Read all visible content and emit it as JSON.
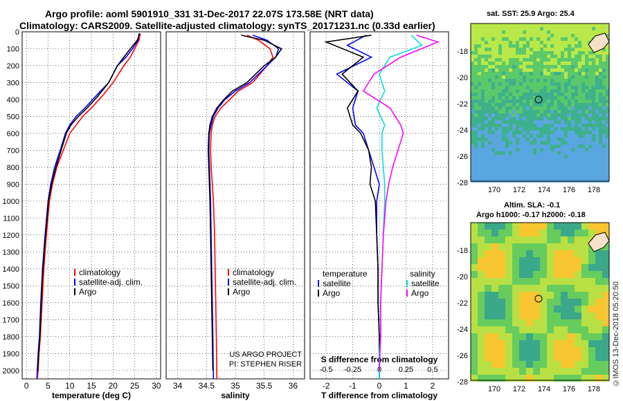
{
  "titles": {
    "line1": "Argo profile: aoml 5901910_331 31-Dec-2017 22.07S 173.58E (NRT data)",
    "line2": "Climatology: CARS2009. Satellite-adjusted climatology: synTS_20171231.nc (0.33d earlier)"
  },
  "maps": {
    "sst_label": "sat. SST: 25.9 Argo: 25.4",
    "sla_label1": "Altim. SLA: -0.1",
    "sla_label2": "Argo h1000: -0.17 h2000: -0.18",
    "credit": "©IMOS 13-Dec-2018 05:20:50",
    "lat_ticks": [
      "-18",
      "-20",
      "-22",
      "-24",
      "-26",
      "-28"
    ],
    "lon_ticks": [
      "170",
      "172",
      "174",
      "176",
      "178"
    ]
  },
  "chart_data": [
    {
      "type": "line",
      "name": "temperature-profile",
      "xlabel": "temperature (deg C)",
      "ylabel": "",
      "xlim": [
        -1,
        31
      ],
      "ylim": [
        2050,
        0
      ],
      "x_ticks": [
        "0",
        "5",
        "10",
        "15",
        "20",
        "25",
        "30"
      ],
      "y_ticks": [
        "0",
        "100",
        "200",
        "300",
        "400",
        "500",
        "600",
        "700",
        "800",
        "900",
        "1000",
        "1100",
        "1200",
        "1300",
        "1400",
        "1500",
        "1600",
        "1700",
        "1800",
        "1900",
        "2000"
      ],
      "grid": true,
      "legend": {
        "placement": "bottom-right",
        "entries": [
          "climatology",
          "satellite-adj. clim.",
          "Argo"
        ]
      },
      "series": [
        {
          "name": "climatology",
          "color": "#ff0000",
          "x": [
            26.3,
            26.0,
            25.0,
            24.0,
            22.5,
            20.0,
            17.5,
            15.0,
            13.0,
            11.5,
            10.0,
            8.5,
            7.0,
            6.0,
            5.3,
            4.6,
            4.0,
            3.6,
            3.2,
            2.9,
            2.7,
            2.5
          ],
          "y": [
            10,
            50,
            100,
            150,
            200,
            300,
            380,
            450,
            500,
            550,
            600,
            700,
            800,
            900,
            1000,
            1200,
            1400,
            1600,
            1800,
            1900,
            2000,
            2050
          ]
        },
        {
          "name": "satellite-adj. clim.",
          "color": "#0000ff",
          "x": [
            26.0,
            25.8,
            24.5,
            23.0,
            21.0,
            19.0,
            16.0,
            13.5,
            11.5,
            10.0,
            9.0,
            7.8,
            6.5,
            5.6,
            5.0,
            4.3,
            3.7,
            3.3,
            3.0,
            2.7,
            2.5,
            2.4
          ],
          "y": [
            10,
            50,
            100,
            150,
            200,
            300,
            380,
            450,
            500,
            550,
            600,
            700,
            800,
            900,
            1000,
            1200,
            1400,
            1600,
            1800,
            1900,
            2000,
            2050
          ]
        },
        {
          "name": "Argo",
          "color": "#000000",
          "x": [
            26.2,
            25.6,
            24.0,
            22.5,
            21.0,
            19.0,
            16.5,
            14.0,
            12.0,
            10.3,
            9.2,
            8.0,
            6.8,
            5.8,
            5.1,
            4.4,
            3.8,
            3.4,
            3.1,
            2.8,
            2.6
          ],
          "y": [
            10,
            50,
            100,
            150,
            200,
            300,
            380,
            450,
            500,
            550,
            600,
            700,
            800,
            900,
            1000,
            1200,
            1400,
            1600,
            1800,
            1900,
            2000
          ]
        }
      ]
    },
    {
      "type": "line",
      "name": "salinity-profile",
      "xlabel": "salinity",
      "xlim": [
        33.8,
        36.2
      ],
      "ylim": [
        2050,
        0
      ],
      "x_ticks": [
        "34",
        "34.5",
        "35",
        "35.5",
        "36"
      ],
      "grid": true,
      "legend": {
        "placement": "bottom-right",
        "entries": [
          "climatology",
          "satellite-adj. clim.",
          "Argo"
        ]
      },
      "annotations": [
        "US ARGO PROJECT",
        "PI: STEPHEN RISER"
      ],
      "series": [
        {
          "name": "climatology",
          "color": "#ff0000",
          "x": [
            35.2,
            35.4,
            35.6,
            35.65,
            35.55,
            35.3,
            35.05,
            34.9,
            34.75,
            34.65,
            34.6,
            34.58,
            34.57,
            34.58,
            34.6,
            34.62,
            34.64,
            34.65,
            34.66,
            34.67,
            34.68
          ],
          "y": [
            20,
            50,
            100,
            150,
            200,
            300,
            350,
            400,
            450,
            500,
            550,
            600,
            700,
            800,
            900,
            1000,
            1200,
            1400,
            1600,
            1800,
            2050
          ]
        },
        {
          "name": "satellite-adj. clim.",
          "color": "#0000ff",
          "x": [
            35.3,
            35.55,
            35.75,
            35.7,
            35.55,
            35.25,
            35.0,
            34.82,
            34.7,
            34.62,
            34.58,
            34.55,
            34.54,
            34.55,
            34.56,
            34.57,
            34.58,
            34.59,
            34.6,
            34.61,
            34.62
          ],
          "y": [
            20,
            50,
            100,
            150,
            200,
            300,
            350,
            400,
            450,
            500,
            550,
            600,
            700,
            800,
            900,
            1000,
            1200,
            1400,
            1600,
            1800,
            2050
          ]
        },
        {
          "name": "Argo",
          "color": "#000000",
          "x": [
            35.1,
            35.5,
            35.8,
            35.7,
            35.5,
            35.2,
            34.95,
            34.8,
            34.68,
            34.6,
            34.56,
            34.54,
            34.53,
            34.54,
            34.55,
            34.56,
            34.57,
            34.58,
            34.59,
            34.6,
            34.61
          ],
          "y": [
            20,
            50,
            100,
            150,
            200,
            300,
            350,
            400,
            450,
            500,
            550,
            600,
            700,
            800,
            900,
            1000,
            1200,
            1400,
            1600,
            1800,
            2000
          ]
        }
      ]
    },
    {
      "type": "line",
      "name": "difference-profile",
      "xlabel": "T difference from climatology",
      "x2label": "S difference from climatology",
      "xlim": [
        -2.6,
        2.6
      ],
      "ylim": [
        2050,
        0
      ],
      "x_ticks": [
        "-2",
        "-1",
        "0",
        "1",
        "2"
      ],
      "x2_ticks": [
        "-0.5",
        "-0.25",
        "0",
        "0.25",
        "0.5"
      ],
      "grid": true,
      "legend": {
        "placement": "bottom",
        "headers": [
          "temperature",
          "salinity"
        ],
        "entries": [
          "satellite",
          "Argo",
          "satellite",
          "Argo"
        ]
      },
      "series": [
        {
          "name": "temperature satellite",
          "color": "#0000ff",
          "x": [
            -0.5,
            -1.2,
            -0.3,
            -1.6,
            -0.8,
            -1.0,
            -0.9,
            -0.6,
            -0.4,
            -0.2,
            0.0,
            -0.1,
            -0.1,
            -0.05,
            -0.05,
            0.0,
            0.0,
            0.0
          ],
          "y": [
            20,
            80,
            150,
            250,
            350,
            450,
            550,
            600,
            700,
            800,
            900,
            1000,
            1200,
            1400,
            1600,
            1800,
            1900,
            2050
          ]
        },
        {
          "name": "temperature Argo",
          "color": "#000000",
          "x": [
            -0.3,
            -2.0,
            -0.6,
            -1.4,
            -0.8,
            -1.2,
            -1.0,
            -0.7,
            -0.4,
            -0.3,
            -0.35,
            -0.15,
            -0.1,
            -0.05,
            -0.05,
            0.0,
            0.0
          ],
          "y": [
            20,
            60,
            150,
            250,
            350,
            450,
            550,
            600,
            700,
            800,
            900,
            1000,
            1200,
            1400,
            1600,
            1800,
            2000
          ]
        },
        {
          "name": "salinity satellite",
          "color": "#00dddd",
          "x": [
            1.2,
            1.6,
            0.4,
            0.0,
            0.2,
            -0.1,
            0.2,
            0.1,
            0.1,
            0.15,
            0.2,
            0.2,
            0.15,
            0.1,
            0.05,
            0.05,
            0.0,
            0.0
          ],
          "y": [
            20,
            80,
            150,
            250,
            350,
            450,
            550,
            600,
            700,
            800,
            900,
            1000,
            1200,
            1400,
            1600,
            1800,
            1900,
            2050
          ]
        },
        {
          "name": "salinity Argo",
          "color": "#ff00ff",
          "x": [
            1.4,
            2.2,
            0.8,
            -0.2,
            -0.6,
            0.4,
            0.8,
            0.9,
            0.7,
            0.5,
            0.35,
            0.25,
            0.15,
            0.1,
            0.05,
            0.05,
            0.0
          ],
          "y": [
            20,
            60,
            150,
            250,
            350,
            450,
            550,
            600,
            700,
            800,
            900,
            1000,
            1200,
            1400,
            1600,
            1800,
            2000
          ]
        }
      ]
    }
  ]
}
